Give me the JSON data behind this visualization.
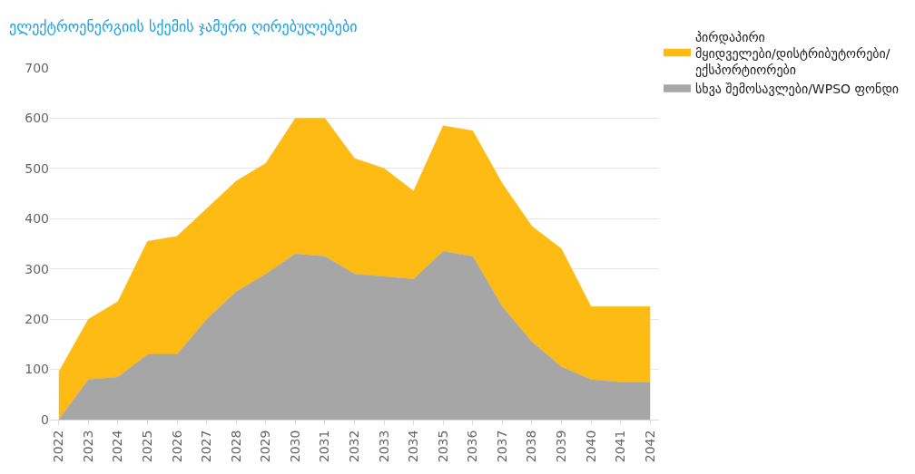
{
  "chart_data": {
    "type": "area",
    "stacked": true,
    "title": "ელექტროენერგიის სქემის ჯამური ღირებულებები",
    "categories": [
      "2022",
      "2023",
      "2024",
      "2025",
      "2026",
      "2027",
      "2028",
      "2029",
      "2030",
      "2031",
      "2032",
      "2033",
      "2034",
      "2035",
      "2036",
      "2037",
      "2038",
      "2039",
      "2040",
      "2041",
      "2042"
    ],
    "series": [
      {
        "name": "სხვა შემოსავლები/WPSO ფონდი",
        "color": "#a6a6a6",
        "values": [
          0,
          80,
          85,
          130,
          130,
          200,
          255,
          290,
          330,
          325,
          290,
          285,
          280,
          335,
          325,
          225,
          155,
          105,
          80,
          75,
          75
        ]
      },
      {
        "name": "პირდაპირი მყიდველები/დისტრიბუტორები/ექსპორტიორები",
        "color": "#fdbb13",
        "values": [
          95,
          120,
          150,
          225,
          235,
          220,
          220,
          220,
          270,
          275,
          230,
          215,
          175,
          250,
          250,
          245,
          230,
          235,
          145,
          150,
          150
        ]
      }
    ],
    "ylim": [
      0,
      700
    ],
    "yticks": [
      0,
      100,
      200,
      300,
      400,
      500,
      600,
      700
    ],
    "grid": "y",
    "legend": "top right"
  }
}
